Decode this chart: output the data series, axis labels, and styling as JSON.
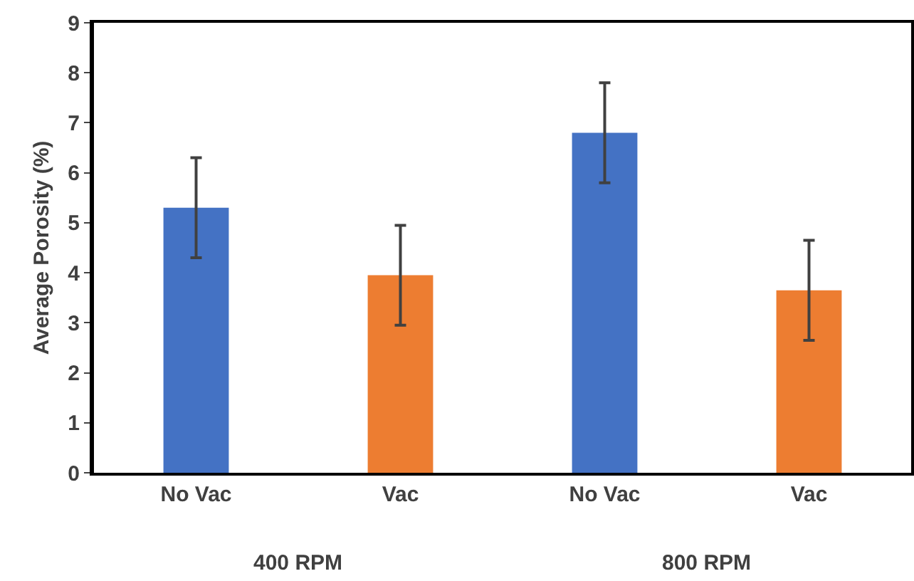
{
  "chart_data": {
    "type": "bar",
    "ylabel": "Average Porosity (%)",
    "categories": [
      "No Vac",
      "Vac",
      "No Vac",
      "Vac"
    ],
    "values": [
      5.3,
      3.95,
      6.8,
      3.65
    ],
    "colors": [
      "#4472c4",
      "#ed7d31",
      "#4472c4",
      "#ed7d31"
    ],
    "errors": [
      1,
      1,
      1,
      1
    ],
    "annotations": [
      "400 RPM",
      "800 RPM"
    ],
    "ylim": [
      0,
      9
    ],
    "yticks": [
      0,
      1,
      2,
      3,
      4,
      5,
      6,
      7,
      8,
      9
    ]
  }
}
